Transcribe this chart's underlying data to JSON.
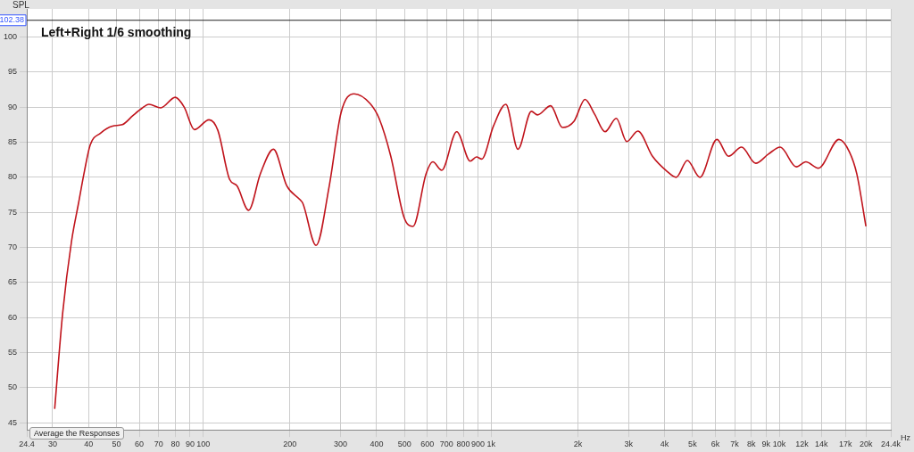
{
  "chart_data": {
    "type": "line",
    "title": "Left+Right 1/6 smoothing",
    "ylabel": "SPL",
    "annotations": [
      "Average the Responses"
    ],
    "log": "x",
    "grid": true,
    "legend": false,
    "marker": "none",
    "line_style": "solid",
    "xlim": [
      24.4,
      24400
    ],
    "ylim": [
      44,
      104
    ],
    "xticks": [
      {
        "value": 24.4,
        "label": "24.4"
      },
      30,
      40,
      50,
      60,
      70,
      80,
      90,
      100,
      200,
      300,
      400,
      500,
      600,
      700,
      800,
      900,
      {
        "value": 1000,
        "label": "1k"
      },
      {
        "value": 2000,
        "label": "2k"
      },
      {
        "value": 3000,
        "label": "3k"
      },
      {
        "value": 4000,
        "label": "4k"
      },
      {
        "value": 5000,
        "label": "5k"
      },
      {
        "value": 6000,
        "label": "6k"
      },
      {
        "value": 7000,
        "label": "7k"
      },
      {
        "value": 8000,
        "label": "8k"
      },
      {
        "value": 9000,
        "label": "9k"
      },
      {
        "value": 10000,
        "label": "10k"
      },
      {
        "value": 12000,
        "label": "12k"
      },
      {
        "value": 14000,
        "label": "14k"
      },
      {
        "value": 17000,
        "label": "17k"
      },
      {
        "value": 20000,
        "label": "20k"
      },
      {
        "value": 24400,
        "label": "24.4k"
      }
    ],
    "xlabel": "Hz",
    "yticks": [
      45,
      50,
      55,
      60,
      65,
      70,
      75,
      80,
      85,
      90,
      95,
      100
    ],
    "ref_lines": [
      {
        "axis": "y",
        "value": 102.38,
        "label": "102.38",
        "color": "#222222"
      }
    ],
    "x": [
      30.5,
      32.5,
      34.9,
      36.9,
      38.7,
      40.5,
      44,
      48.4,
      52.4,
      57,
      61.1,
      64.8,
      71.2,
      80,
      85.9,
      93.2,
      104.8,
      112.4,
      123.5,
      130.9,
      143.8,
      157.9,
      175.3,
      195,
      216.9,
      221.7,
      246.5,
      274,
      301,
      334,
      380,
      408,
      448,
      498,
      535,
      594,
      627,
      673,
      759,
      846,
      889,
      927,
      1018,
      1124,
      1238,
      1379,
      1447,
      1609,
      1766,
      1939,
      2117,
      2286,
      2485,
      2718,
      2955,
      3229,
      3630,
      4066,
      4389,
      4797,
      5303,
      6078,
      6670,
      7400,
      8284,
      9168,
      10080,
      11460,
      12370,
      13680,
      16130,
      17540,
      18590,
      20000
    ],
    "series": [
      {
        "color": "#c0141c",
        "values": [
          47,
          60.6,
          70.9,
          76.3,
          80.9,
          84.6,
          86.3,
          87.3,
          87.5,
          88.8,
          89.8,
          90.4,
          89.9,
          91.4,
          90.0,
          86.8,
          88.2,
          86.7,
          79.7,
          78.8,
          75.3,
          80.5,
          84.0,
          78.8,
          76.8,
          76.3,
          70.3,
          78.8,
          89.2,
          91.9,
          90.5,
          88.4,
          83.0,
          74.3,
          73.0,
          80.5,
          82.2,
          81.0,
          86.5,
          82.3,
          82.9,
          82.6,
          87.3,
          90.4,
          84.0,
          89.4,
          88.9,
          90.2,
          87.1,
          88.0,
          91.1,
          89.0,
          86.5,
          88.4,
          85.1,
          86.6,
          83.0,
          80.9,
          80.0,
          82.4,
          80.0,
          85.4,
          83.0,
          84.3,
          82.0,
          83.3,
          84.3,
          81.5,
          82.2,
          81.3,
          85.4,
          83.6,
          80.5,
          73.0
        ]
      }
    ]
  }
}
